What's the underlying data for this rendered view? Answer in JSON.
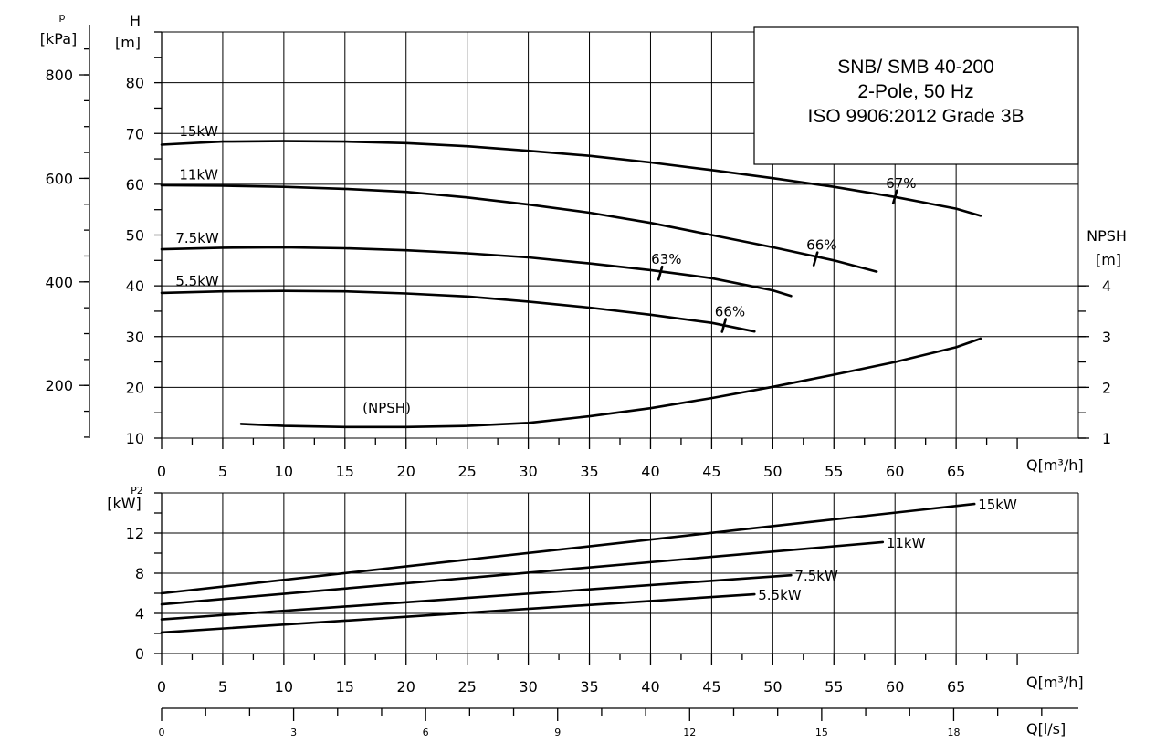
{
  "chart_data": [
    {
      "type": "line",
      "title": [
        "SNB/ SMB 40-200",
        "2-Pole, 50 Hz",
        "ISO 9906:2012 Grade 3B"
      ],
      "x_unit": "Q[m³/h]",
      "xlim": [
        0,
        75
      ],
      "x_ticks": [
        0,
        5,
        10,
        15,
        20,
        25,
        30,
        35,
        40,
        45,
        50,
        55,
        60,
        65
      ],
      "y_left_label": "H [m]",
      "ylim": [
        10,
        90
      ],
      "y_ticks": [
        10,
        20,
        30,
        40,
        50,
        60,
        70,
        80
      ],
      "p_axis_label": [
        "p",
        "[kPa]"
      ],
      "p_ticks": [
        200,
        400,
        600,
        800
      ],
      "npsh_axis_label": [
        "NPSH",
        "[m]"
      ],
      "npsh_ticks": [
        1,
        2,
        3,
        4
      ],
      "npsh_mapping": "NPSH 1 m at H 10 m, NPSH 4 m at H 40 m",
      "grid": true,
      "series": [
        {
          "name": "15kW",
          "points": [
            [
              0,
              67.8
            ],
            [
              5,
              68.4
            ],
            [
              10,
              68.5
            ],
            [
              15,
              68.4
            ],
            [
              20,
              68.1
            ],
            [
              25,
              67.5
            ],
            [
              30,
              66.6
            ],
            [
              35,
              65.6
            ],
            [
              40,
              64.3
            ],
            [
              45,
              62.8
            ],
            [
              50,
              61.2
            ],
            [
              55,
              59.5
            ],
            [
              60,
              57.5
            ],
            [
              65,
              55.2
            ],
            [
              67,
              53.8
            ]
          ]
        },
        {
          "name": "11kW",
          "points": [
            [
              0,
              59.8
            ],
            [
              5,
              59.7
            ],
            [
              10,
              59.5
            ],
            [
              15,
              59.1
            ],
            [
              20,
              58.5
            ],
            [
              25,
              57.4
            ],
            [
              30,
              56.0
            ],
            [
              35,
              54.4
            ],
            [
              40,
              52.4
            ],
            [
              45,
              50.0
            ],
            [
              50,
              47.6
            ],
            [
              55,
              45.0
            ],
            [
              58.5,
              42.8
            ]
          ]
        },
        {
          "name": "7.5kW",
          "points": [
            [
              0,
              47.2
            ],
            [
              5,
              47.5
            ],
            [
              10,
              47.6
            ],
            [
              15,
              47.4
            ],
            [
              20,
              47.0
            ],
            [
              25,
              46.4
            ],
            [
              30,
              45.6
            ],
            [
              35,
              44.4
            ],
            [
              40,
              43.1
            ],
            [
              45,
              41.5
            ],
            [
              50,
              39.1
            ],
            [
              51.5,
              38.0
            ]
          ]
        },
        {
          "name": "5.5kW",
          "points": [
            [
              0,
              38.6
            ],
            [
              5,
              38.9
            ],
            [
              10,
              39.0
            ],
            [
              15,
              38.9
            ],
            [
              20,
              38.5
            ],
            [
              25,
              37.9
            ],
            [
              30,
              36.9
            ],
            [
              35,
              35.7
            ],
            [
              40,
              34.3
            ],
            [
              45,
              32.7
            ],
            [
              48.5,
              31.0
            ]
          ]
        },
        {
          "name": "(NPSH)",
          "points": [
            [
              6.5,
              12.8
            ],
            [
              10,
              12.4
            ],
            [
              15,
              12.2
            ],
            [
              20,
              12.2
            ],
            [
              25,
              12.4
            ],
            [
              30,
              13.0
            ],
            [
              35,
              14.3
            ],
            [
              40,
              15.9
            ],
            [
              45,
              17.9
            ],
            [
              50,
              20.1
            ],
            [
              55,
              22.5
            ],
            [
              60,
              25.0
            ],
            [
              65,
              27.9
            ],
            [
              67,
              29.6
            ]
          ]
        }
      ],
      "curve_labels": [
        {
          "text": "15kW",
          "x": 1,
          "y": 69.5
        },
        {
          "text": "11kW",
          "x": 1,
          "y": 61.0
        },
        {
          "text": "7.5kW",
          "x": 0.7,
          "y": 48.5
        },
        {
          "text": "5.5kW",
          "x": 0.7,
          "y": 40.0
        },
        {
          "text": "(NPSH)",
          "x": 16,
          "y": 15
        }
      ],
      "efficiency_marks": [
        {
          "text": "67%",
          "x": 60,
          "y": 57.5
        },
        {
          "text": "66%",
          "x": 53.5,
          "y": 45.3
        },
        {
          "text": "63%",
          "x": 40.8,
          "y": 42.5
        },
        {
          "text": "66%",
          "x": 46,
          "y": 32.2
        }
      ]
    },
    {
      "type": "line",
      "ylabel": [
        "P2",
        "[kW]"
      ],
      "ylim": [
        0,
        16
      ],
      "y_ticks": [
        0,
        4,
        8,
        12
      ],
      "x_unit": "Q[m³/h]",
      "xlim": [
        0,
        75
      ],
      "x_ticks": [
        0,
        5,
        10,
        15,
        20,
        25,
        30,
        35,
        40,
        45,
        50,
        55,
        60,
        65
      ],
      "grid": true,
      "series": [
        {
          "name": "15kW",
          "points": [
            [
              0,
              6.0
            ],
            [
              66.5,
              14.9
            ]
          ]
        },
        {
          "name": "11kW",
          "points": [
            [
              0,
              4.9
            ],
            [
              59,
              11.1
            ]
          ]
        },
        {
          "name": "7.5kW",
          "points": [
            [
              0,
              3.4
            ],
            [
              51.5,
              7.8
            ]
          ]
        },
        {
          "name": "5.5kW",
          "points": [
            [
              0,
              2.1
            ],
            [
              48.5,
              5.9
            ]
          ]
        }
      ]
    }
  ],
  "flow_ls_axis": {
    "label": "Q[l/s]",
    "ticks": [
      0,
      3,
      6,
      9,
      12,
      15,
      18
    ]
  }
}
